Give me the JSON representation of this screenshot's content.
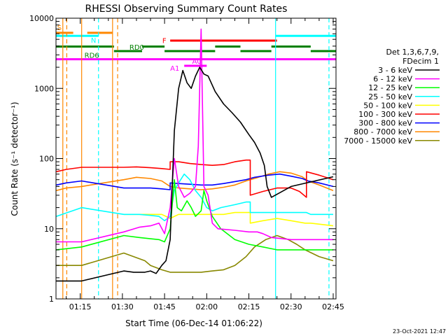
{
  "chart_data": {
    "type": "line",
    "title": "RHESSI Observing Summary Count Rates",
    "xlabel": "Start Time (06-Dec-14 01:06:22)",
    "ylabel": "Count Rate (s⁻¹ detector⁻¹)",
    "y_scale": "log",
    "ylim": [
      1,
      10000
    ],
    "xlim_minutes": [
      66.37,
      166.0
    ],
    "x_ticks": [
      {
        "label": "01:15",
        "minutes": 75
      },
      {
        "label": "01:30",
        "minutes": 90
      },
      {
        "label": "01:45",
        "minutes": 105
      },
      {
        "label": "02:00",
        "minutes": 120
      },
      {
        "label": "02:15",
        "minutes": 135
      },
      {
        "label": "02:30",
        "minutes": 150
      },
      {
        "label": "02:45",
        "minutes": 165
      }
    ],
    "y_ticks": [
      {
        "label": "1",
        "value": 1
      },
      {
        "label": "10",
        "value": 10
      },
      {
        "label": "100",
        "value": 100
      },
      {
        "label": "1000",
        "value": 1000
      },
      {
        "label": "10000",
        "value": 10000
      }
    ],
    "legend_title": [
      "Det 1,3,6,7,9,",
      "FDecim 1"
    ],
    "legend_placement": "right",
    "series": [
      {
        "name": "3 - 6 keV",
        "color": "#000000",
        "values": [
          [
            66.5,
            1.8
          ],
          [
            75.5,
            1.8
          ],
          [
            90.5,
            2.5
          ],
          [
            94,
            2.4
          ],
          [
            98,
            2.4
          ],
          [
            100,
            2.5
          ],
          [
            102,
            2.3
          ],
          [
            104,
            3.0
          ],
          [
            105.5,
            3.5
          ],
          [
            107,
            7
          ],
          [
            108.5,
            250
          ],
          [
            110,
            1000
          ],
          [
            111.5,
            1800
          ],
          [
            113,
            1200
          ],
          [
            114.5,
            1000
          ],
          [
            116,
            1500
          ],
          [
            117.5,
            2000
          ],
          [
            119,
            1600
          ],
          [
            120.5,
            1500
          ],
          [
            123,
            900
          ],
          [
            126,
            600
          ],
          [
            129,
            450
          ],
          [
            132,
            330
          ],
          [
            135,
            220
          ],
          [
            137,
            170
          ],
          [
            139,
            120
          ],
          [
            140.5,
            80
          ],
          [
            141.5,
            40
          ],
          [
            143,
            28
          ],
          [
            150,
            40
          ],
          [
            165,
            55
          ]
        ]
      },
      {
        "name": "6 - 12 keV",
        "color": "#ff00ff",
        "values": [
          [
            66.5,
            6.5
          ],
          [
            75.5,
            6.5
          ],
          [
            90.5,
            9
          ],
          [
            96,
            10.5
          ],
          [
            100,
            11
          ],
          [
            103,
            12
          ],
          [
            105,
            8.5
          ],
          [
            107,
            20
          ],
          [
            108.5,
            100
          ],
          [
            110,
            40
          ],
          [
            112,
            28
          ],
          [
            114,
            32
          ],
          [
            116,
            40
          ],
          [
            117,
            150
          ],
          [
            118,
            7000
          ],
          [
            119,
            40
          ],
          [
            120.5,
            30
          ],
          [
            122,
            12
          ],
          [
            124,
            10
          ],
          [
            130,
            9.5
          ],
          [
            135,
            9
          ],
          [
            138,
            9
          ],
          [
            140,
            8.5
          ],
          [
            143,
            7.5
          ],
          [
            150,
            7
          ],
          [
            160,
            7
          ],
          [
            165,
            7
          ]
        ]
      },
      {
        "name": "12 - 25 keV",
        "color": "#00ff00",
        "values": [
          [
            66.5,
            5
          ],
          [
            75.5,
            5.5
          ],
          [
            90.5,
            8
          ],
          [
            96,
            7.5
          ],
          [
            100,
            7.2
          ],
          [
            103,
            7.0
          ],
          [
            105,
            6.5
          ],
          [
            107,
            10
          ],
          [
            108.5,
            50
          ],
          [
            109.5,
            20
          ],
          [
            111,
            18
          ],
          [
            113,
            25
          ],
          [
            114.5,
            20
          ],
          [
            116,
            15
          ],
          [
            118,
            18
          ],
          [
            119,
            35
          ],
          [
            120,
            25
          ],
          [
            122,
            15
          ],
          [
            125,
            10
          ],
          [
            130,
            7
          ],
          [
            135,
            6
          ],
          [
            140,
            5.5
          ],
          [
            145,
            5
          ],
          [
            150,
            5
          ],
          [
            155,
            5
          ],
          [
            165,
            5
          ]
        ]
      },
      {
        "name": "25 - 50 keV",
        "color": "#00ffff",
        "values": [
          [
            66.5,
            15
          ],
          [
            75.5,
            20
          ],
          [
            90.5,
            16
          ],
          [
            96,
            16
          ],
          [
            100,
            15.5
          ],
          [
            103,
            15
          ],
          [
            105,
            13
          ],
          [
            107,
            15
          ],
          [
            108.5,
            35
          ],
          [
            110,
            45
          ],
          [
            112,
            60
          ],
          [
            114,
            50
          ],
          [
            116,
            35
          ],
          [
            118,
            28
          ],
          [
            120,
            20
          ],
          [
            122,
            18
          ],
          [
            125,
            20
          ],
          [
            130,
            22
          ],
          [
            134,
            24
          ],
          [
            135.5,
            24
          ],
          [
            135.5,
            17
          ],
          [
            140,
            17
          ],
          [
            145,
            17
          ],
          [
            150,
            17
          ],
          [
            155,
            17
          ],
          [
            155.5,
            17
          ],
          [
            157,
            16
          ],
          [
            165,
            16
          ]
        ]
      },
      {
        "name": "50 - 100 keV",
        "color": "#ffff00",
        "values": [
          [
            90.5,
            16
          ],
          [
            96,
            16
          ],
          [
            100,
            16
          ],
          [
            104,
            16
          ],
          [
            105.5,
            15
          ],
          [
            107,
            14
          ],
          [
            108.5,
            15
          ],
          [
            110,
            16
          ],
          [
            112,
            16
          ],
          [
            114,
            16
          ],
          [
            118,
            16
          ],
          [
            122,
            16
          ],
          [
            126,
            16
          ],
          [
            130,
            17
          ],
          [
            134,
            17
          ],
          [
            135.5,
            17
          ],
          [
            135.5,
            12
          ],
          [
            140,
            13
          ],
          [
            145,
            14
          ],
          [
            150,
            13
          ],
          [
            155,
            12
          ],
          [
            157,
            12
          ],
          [
            165,
            11
          ]
        ]
      },
      {
        "name": "100 - 300 keV",
        "color": "#ff0000",
        "values": [
          [
            66.5,
            65
          ],
          [
            70,
            70
          ],
          [
            75.5,
            75
          ],
          [
            90.5,
            75
          ],
          [
            95,
            76
          ],
          [
            100,
            74
          ],
          [
            104,
            72
          ],
          [
            107,
            70
          ],
          [
            107,
            90
          ],
          [
            110,
            90
          ],
          [
            114,
            85
          ],
          [
            118,
            82
          ],
          [
            122,
            80
          ],
          [
            126,
            82
          ],
          [
            130,
            90
          ],
          [
            134,
            95
          ],
          [
            135.5,
            95
          ],
          [
            135.5,
            30
          ],
          [
            140,
            34
          ],
          [
            145,
            38
          ],
          [
            150,
            38
          ],
          [
            153,
            34
          ],
          [
            155.5,
            28
          ],
          [
            155.5,
            65
          ],
          [
            160,
            58
          ],
          [
            165,
            50
          ]
        ]
      },
      {
        "name": "300 - 800 keV",
        "color": "#0000ff",
        "values": [
          [
            66.5,
            42
          ],
          [
            70,
            45
          ],
          [
            75.5,
            48
          ],
          [
            90.5,
            38
          ],
          [
            95,
            38
          ],
          [
            100,
            38
          ],
          [
            104,
            37
          ],
          [
            107,
            36
          ],
          [
            107,
            45
          ],
          [
            110,
            44
          ],
          [
            114,
            43
          ],
          [
            118,
            42
          ],
          [
            122,
            42
          ],
          [
            126,
            44
          ],
          [
            130,
            47
          ],
          [
            134,
            50
          ],
          [
            137,
            54
          ],
          [
            142,
            58
          ],
          [
            146,
            60
          ],
          [
            150,
            56
          ],
          [
            154,
            52
          ],
          [
            156,
            48
          ],
          [
            160,
            45
          ],
          [
            165,
            40
          ]
        ]
      },
      {
        "name": "800 - 7000 keV",
        "color": "#ff8800",
        "values": [
          [
            66.5,
            35
          ],
          [
            70,
            38
          ],
          [
            75.5,
            40
          ],
          [
            90.5,
            50
          ],
          [
            95,
            54
          ],
          [
            100,
            52
          ],
          [
            104,
            48
          ],
          [
            107,
            40
          ],
          [
            110,
            38
          ],
          [
            114,
            37
          ],
          [
            118,
            36
          ],
          [
            122,
            37
          ],
          [
            126,
            39
          ],
          [
            130,
            42
          ],
          [
            134,
            48
          ],
          [
            137,
            52
          ],
          [
            142,
            60
          ],
          [
            146,
            65
          ],
          [
            150,
            62
          ],
          [
            154,
            55
          ],
          [
            156,
            48
          ],
          [
            160,
            42
          ],
          [
            165,
            35
          ]
        ]
      },
      {
        "name": "7000 - 15000 keV",
        "color": "#888800",
        "values": [
          [
            66.5,
            3.0
          ],
          [
            75.5,
            3.0
          ],
          [
            90.5,
            4.5
          ],
          [
            94,
            4.0
          ],
          [
            98,
            3.5
          ],
          [
            100,
            3.0
          ],
          [
            104,
            2.6
          ],
          [
            107,
            2.4
          ],
          [
            110,
            2.4
          ],
          [
            114,
            2.4
          ],
          [
            118,
            2.4
          ],
          [
            122,
            2.5
          ],
          [
            126,
            2.6
          ],
          [
            130,
            3.0
          ],
          [
            134,
            4.0
          ],
          [
            137,
            5.5
          ],
          [
            141,
            7
          ],
          [
            145,
            8
          ],
          [
            149,
            7
          ],
          [
            152,
            6
          ],
          [
            155,
            5
          ],
          [
            160,
            4
          ],
          [
            165,
            3.5
          ]
        ]
      }
    ],
    "annotations": [
      {
        "label": "S",
        "color": "#ff8800"
      },
      {
        "label": "N",
        "color": "#00ffff"
      },
      {
        "label": "RD0",
        "color": "#008000"
      },
      {
        "label": "RD6",
        "color": "#008000"
      },
      {
        "label": "F",
        "color": "#ff0000"
      },
      {
        "label": "A1",
        "color": "#ff00ff"
      },
      {
        "label": "A0",
        "color": "#ff00ff"
      }
    ],
    "state_bars": [
      {
        "label": "S",
        "color": "#ff8800",
        "segments": [
          [
            66.4,
            72.5
          ],
          [
            77.5,
            86.5
          ]
        ],
        "level": 6200
      },
      {
        "label": "N",
        "color": "#00ffff",
        "segments": [
          [
            66.4,
            81.5
          ],
          [
            144.5,
            166
          ]
        ],
        "level": 5600
      },
      {
        "label": "RD0",
        "color": "#008000",
        "segments": [
          [
            66.4,
            87
          ],
          [
            97,
            105
          ],
          [
            123,
            132
          ],
          [
            143,
            157
          ]
        ],
        "level": 3950
      },
      {
        "label": "RD6",
        "color": "#008000",
        "segments": [
          [
            87,
            97
          ],
          [
            105,
            123
          ],
          [
            132,
            143
          ],
          [
            157,
            166
          ]
        ],
        "level": 3400
      },
      {
        "label": "F",
        "color": "#ff0000",
        "segments": [
          [
            107,
            145
          ]
        ],
        "level": 4800
      },
      {
        "label": "A0",
        "color": "#ff00ff",
        "segments": [
          [
            66.4,
            166
          ]
        ],
        "level": 2600
      },
      {
        "label": "A1",
        "color": "#ff00ff",
        "segments": [
          [
            112,
            120
          ]
        ],
        "level": 2100
      }
    ],
    "vertical_markers": [
      {
        "minutes": 68.8,
        "color": "#ff8800",
        "style": "solid"
      },
      {
        "minutes": 70.2,
        "color": "#ff8800",
        "style": "dashed"
      },
      {
        "minutes": 75.5,
        "color": "#ff8800",
        "style": "solid"
      },
      {
        "minutes": 81.5,
        "color": "#00ffff",
        "style": "dashed"
      },
      {
        "minutes": 86.5,
        "color": "#ff8800",
        "style": "solid"
      },
      {
        "minutes": 88.3,
        "color": "#ff8800",
        "style": "dashed"
      },
      {
        "minutes": 144.5,
        "color": "#00ffff",
        "style": "solid"
      },
      {
        "minutes": 163.5,
        "color": "#00ffff",
        "style": "dashed"
      }
    ]
  },
  "footer_date": "23-Oct-2021 12:47"
}
